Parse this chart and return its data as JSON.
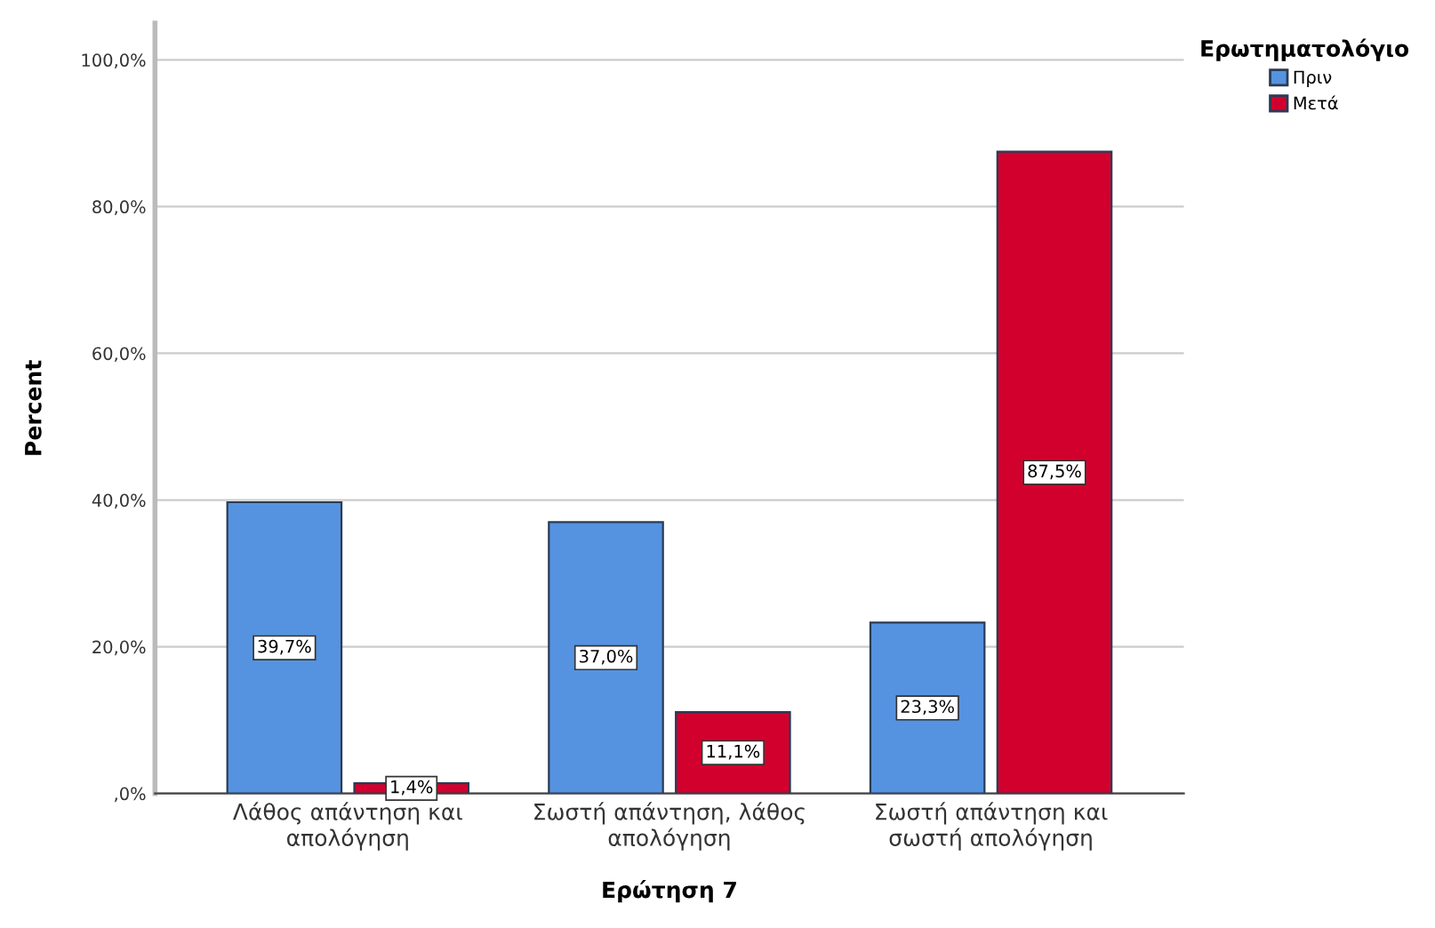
{
  "chart_data": {
    "type": "bar",
    "xlabel": "Ερώτηση 7",
    "ylabel": "Percent",
    "legend_title": "Ερωτηματολόγιο",
    "categories": [
      "Λάθος απάντηση και\nαπολόγηση",
      "Σωστή απάντηση, λάθος\nαπολόγηση",
      "Σωστή απάντηση και\nσωστή απολόγηση"
    ],
    "series": [
      {
        "name": "Πριν",
        "color": "#5593e0",
        "values": [
          39.7,
          37.0,
          23.3
        ],
        "value_labels": [
          "39,7%",
          "37,0%",
          "23,3%"
        ]
      },
      {
        "name": "Μετά",
        "color": "#d2002d",
        "values": [
          1.4,
          11.1,
          87.5
        ],
        "value_labels": [
          "1,4%",
          "11,1%",
          "87,5%"
        ]
      }
    ],
    "ylim": [
      0,
      105
    ],
    "yticks": [
      {
        "value": 0,
        "label": ",0%"
      },
      {
        "value": 20,
        "label": "20,0%"
      },
      {
        "value": 40,
        "label": "40,0%"
      },
      {
        "value": 60,
        "label": "60,0%"
      },
      {
        "value": 80,
        "label": "80,0%"
      },
      {
        "value": 100,
        "label": "100,0%"
      }
    ],
    "grid": "y",
    "legend": "top right"
  }
}
